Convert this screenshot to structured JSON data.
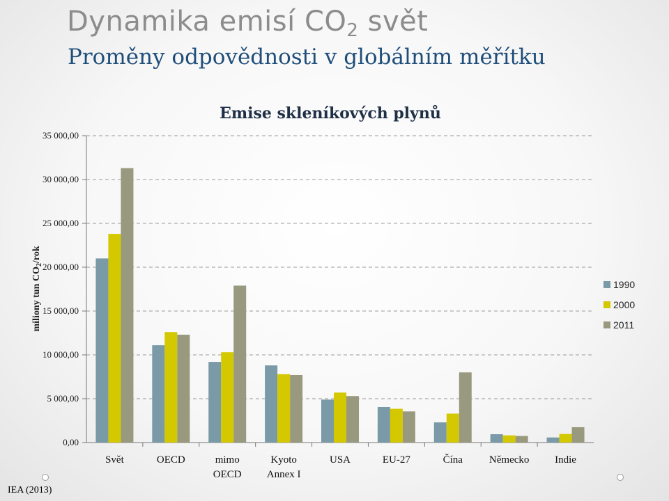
{
  "slide": {
    "title_main": "Dynamika  emisí  CO",
    "title_sub": "2",
    "title_end": " svět",
    "subtitle": "Proměny odpovědnosti v globálním měřítku",
    "source": "IEA (2013)"
  },
  "chart_data": {
    "type": "bar",
    "title": "Emise skleníkových plynů",
    "ylabel_pre": "miliony tun CO",
    "ylabel_sub": "2",
    "ylabel_post": "/rok",
    "ylim": [
      0,
      35000
    ],
    "yticks": [
      0,
      5000,
      10000,
      15000,
      20000,
      25000,
      30000,
      35000
    ],
    "ytick_labels": [
      "0,00",
      "5 000,00",
      "10 000,00",
      "15 000,00",
      "20 000,00",
      "25 000,00",
      "30 000,00",
      "35 000,00"
    ],
    "grid": "horizontal dashed",
    "legend_position": "right",
    "categories": [
      [
        "Svět"
      ],
      [
        "OECD"
      ],
      [
        "mimo",
        "OECD"
      ],
      [
        "Kyoto",
        "Annex I"
      ],
      [
        "USA"
      ],
      [
        "EU-27"
      ],
      [
        "Čína"
      ],
      [
        "Německo"
      ],
      [
        "Indie"
      ]
    ],
    "series": [
      {
        "name": "1990",
        "color": "#7a9aa8",
        "values": [
          21000,
          11100,
          9200,
          8800,
          4900,
          4050,
          2300,
          950,
          580
        ]
      },
      {
        "name": "2000",
        "color": "#d4c800",
        "values": [
          23800,
          12600,
          10300,
          7800,
          5700,
          3850,
          3300,
          820,
          980
        ]
      },
      {
        "name": "2011",
        "color": "#999980",
        "values": [
          31300,
          12300,
          17900,
          7700,
          5300,
          3550,
          8000,
          750,
          1750
        ]
      }
    ]
  }
}
